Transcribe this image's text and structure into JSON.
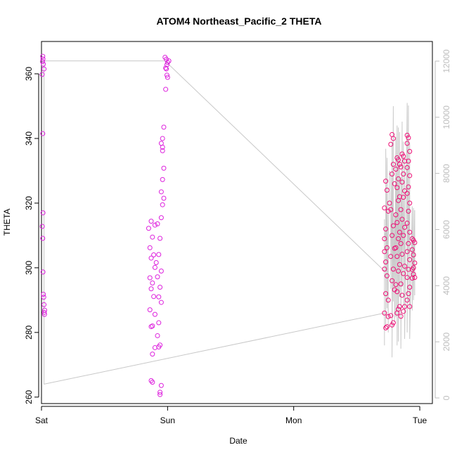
{
  "chart_data": {
    "type": "scatter",
    "title": "ATOM4 Northeast_Pacific_2 THETA",
    "xlabel": "Date",
    "ylabel": "THETA",
    "xlim": [
      0,
      3.1
    ],
    "ylim": [
      258,
      370
    ],
    "y2lim": [
      -200,
      12700
    ],
    "x_ticks": [
      {
        "value": 0,
        "label": "Sat"
      },
      {
        "value": 1,
        "label": "Sun"
      },
      {
        "value": 2,
        "label": "Mon"
      },
      {
        "value": 3,
        "label": "Tue"
      }
    ],
    "y_ticks": [
      260,
      280,
      300,
      320,
      340,
      360
    ],
    "y2_ticks": [
      0,
      2000,
      4000,
      6000,
      8000,
      10000,
      12000
    ],
    "grid": false,
    "colors": {
      "point_early": "#dd22dd",
      "point_late": "#ee1177",
      "depth_line": "#c8c8c8",
      "right_axis": "#bdbdbd",
      "axis": "#000000"
    },
    "series": [
      {
        "role": "THETA points",
        "points": [
          [
            0.01,
            365.4
          ],
          [
            0.012,
            364.6
          ],
          [
            0.008,
            363.8
          ],
          [
            0.015,
            363.0
          ],
          [
            0.02,
            361.5
          ],
          [
            0.005,
            359.8
          ],
          [
            0.01,
            341.5
          ],
          [
            0.012,
            317.0
          ],
          [
            0.006,
            312.8
          ],
          [
            0.01,
            309.1
          ],
          [
            0.012,
            298.7
          ],
          [
            0.015,
            291.8
          ],
          [
            0.018,
            290.9
          ],
          [
            0.02,
            288.6
          ],
          [
            0.025,
            286.9
          ],
          [
            0.022,
            286.2
          ],
          [
            0.024,
            285.6
          ],
          [
            0.87,
            314.4
          ],
          [
            0.9,
            313.2
          ],
          [
            0.85,
            312.2
          ],
          [
            0.88,
            309.5
          ],
          [
            0.86,
            306.2
          ],
          [
            0.89,
            304.0
          ],
          [
            0.87,
            303.0
          ],
          [
            0.9,
            300.1
          ],
          [
            0.86,
            296.9
          ],
          [
            0.88,
            295.3
          ],
          [
            0.87,
            293.5
          ],
          [
            0.89,
            291.1
          ],
          [
            0.86,
            287.0
          ],
          [
            0.9,
            285.6
          ],
          [
            0.88,
            282.0
          ],
          [
            0.87,
            281.8
          ],
          [
            0.9,
            275.3
          ],
          [
            0.88,
            273.3
          ],
          [
            0.87,
            265.1
          ],
          [
            0.88,
            264.6
          ],
          [
            0.92,
            313.6
          ],
          [
            0.94,
            309.1
          ],
          [
            0.93,
            304.1
          ],
          [
            0.91,
            301.6
          ],
          [
            0.95,
            299.0
          ],
          [
            0.92,
            297.2
          ],
          [
            0.94,
            294.0
          ],
          [
            0.93,
            291.0
          ],
          [
            0.95,
            289.3
          ],
          [
            0.93,
            283.0
          ],
          [
            0.92,
            279.0
          ],
          [
            0.94,
            276.1
          ],
          [
            0.93,
            275.5
          ],
          [
            0.95,
            263.6
          ],
          [
            0.94,
            261.5
          ],
          [
            0.94,
            260.8
          ],
          [
            0.96,
            337.3
          ],
          [
            0.97,
            330.8
          ],
          [
            0.96,
            327.3
          ],
          [
            0.95,
            323.5
          ],
          [
            0.97,
            321.5
          ],
          [
            0.96,
            319.5
          ],
          [
            0.95,
            315.5
          ],
          [
            0.97,
            343.5
          ],
          [
            0.96,
            340.0
          ],
          [
            0.95,
            338.5
          ],
          [
            0.96,
            336.2
          ],
          [
            0.98,
            365.1
          ],
          [
            0.99,
            364.5
          ],
          [
            1.0,
            363.5
          ],
          [
            0.985,
            361.8
          ],
          [
            0.99,
            361.5
          ],
          [
            0.995,
            359.6
          ],
          [
            0.985,
            355.2
          ],
          [
            1.0,
            358.9
          ],
          [
            1.01,
            364.0
          ],
          [
            0.995,
            362.8
          ],
          [
            2.72,
            309.0
          ],
          [
            2.73,
            301.8
          ],
          [
            2.72,
            299.6
          ],
          [
            2.74,
            297.5
          ],
          [
            2.73,
            292.0
          ],
          [
            2.75,
            290.0
          ],
          [
            2.72,
            286.0
          ],
          [
            2.74,
            281.8
          ],
          [
            2.73,
            281.4
          ],
          [
            2.75,
            284.9
          ],
          [
            2.72,
            305.0
          ],
          [
            2.74,
            306.2
          ],
          [
            2.73,
            312.0
          ],
          [
            2.75,
            317.5
          ],
          [
            2.72,
            318.5
          ],
          [
            2.73,
            326.8
          ],
          [
            2.74,
            324.0
          ],
          [
            2.76,
            320.0
          ],
          [
            2.78,
            341.2
          ],
          [
            2.79,
            340.0
          ],
          [
            2.77,
            338.2
          ],
          [
            2.79,
            332.0
          ],
          [
            2.78,
            329.0
          ],
          [
            2.8,
            326.0
          ],
          [
            2.77,
            318.0
          ],
          [
            2.79,
            313.0
          ],
          [
            2.78,
            310.0
          ],
          [
            2.8,
            306.0
          ],
          [
            2.77,
            303.5
          ],
          [
            2.79,
            299.6
          ],
          [
            2.78,
            296.0
          ],
          [
            2.8,
            293.2
          ],
          [
            2.77,
            285.2
          ],
          [
            2.79,
            283.0
          ],
          [
            2.78,
            282.3
          ],
          [
            2.82,
            334.0
          ],
          [
            2.83,
            333.4
          ],
          [
            2.84,
            332.0
          ],
          [
            2.81,
            330.5
          ],
          [
            2.83,
            327.5
          ],
          [
            2.82,
            324.8
          ],
          [
            2.84,
            322.0
          ],
          [
            2.83,
            320.8
          ],
          [
            2.81,
            316.4
          ],
          [
            2.82,
            314.0
          ],
          [
            2.84,
            311.0
          ],
          [
            2.83,
            309.0
          ],
          [
            2.81,
            306.2
          ],
          [
            2.82,
            303.5
          ],
          [
            2.84,
            301.0
          ],
          [
            2.83,
            299.0
          ],
          [
            2.81,
            294.8
          ],
          [
            2.82,
            292.6
          ],
          [
            2.84,
            288.0
          ],
          [
            2.83,
            287.2
          ],
          [
            2.82,
            286.0
          ],
          [
            2.86,
            335.2
          ],
          [
            2.87,
            334.5
          ],
          [
            2.88,
            333.0
          ],
          [
            2.85,
            331.2
          ],
          [
            2.87,
            329.0
          ],
          [
            2.86,
            326.5
          ],
          [
            2.88,
            323.8
          ],
          [
            2.87,
            321.8
          ],
          [
            2.85,
            318.0
          ],
          [
            2.86,
            315.0
          ],
          [
            2.88,
            312.5
          ],
          [
            2.87,
            310.0
          ],
          [
            2.85,
            307.5
          ],
          [
            2.86,
            304.2
          ],
          [
            2.88,
            300.5
          ],
          [
            2.87,
            298.2
          ],
          [
            2.85,
            295.0
          ],
          [
            2.86,
            291.5
          ],
          [
            2.88,
            288.0
          ],
          [
            2.87,
            286.5
          ],
          [
            2.85,
            285.0
          ],
          [
            2.9,
            341.0
          ],
          [
            2.91,
            340.2
          ],
          [
            2.9,
            338.5
          ],
          [
            2.92,
            336.0
          ],
          [
            2.91,
            333.0
          ],
          [
            2.9,
            331.0
          ],
          [
            2.92,
            328.5
          ],
          [
            2.91,
            325.0
          ],
          [
            2.9,
            323.0
          ],
          [
            2.92,
            320.0
          ],
          [
            2.91,
            317.5
          ],
          [
            2.9,
            313.8
          ],
          [
            2.92,
            311.0
          ],
          [
            2.91,
            307.5
          ],
          [
            2.9,
            305.0
          ],
          [
            2.92,
            302.5
          ],
          [
            2.91,
            299.5
          ],
          [
            2.9,
            297.0
          ],
          [
            2.92,
            294.0
          ],
          [
            2.91,
            292.0
          ],
          [
            2.9,
            290.0
          ],
          [
            2.92,
            288.0
          ],
          [
            2.94,
            309.0
          ],
          [
            2.95,
            308.5
          ],
          [
            2.96,
            307.8
          ],
          [
            2.94,
            305.6
          ],
          [
            2.95,
            304.0
          ],
          [
            2.96,
            301.5
          ],
          [
            2.94,
            299.5
          ],
          [
            2.95,
            298.0
          ],
          [
            2.96,
            297.0
          ],
          [
            2.94,
            296.8
          ],
          [
            2.95,
            300.0
          ]
        ]
      }
    ]
  }
}
